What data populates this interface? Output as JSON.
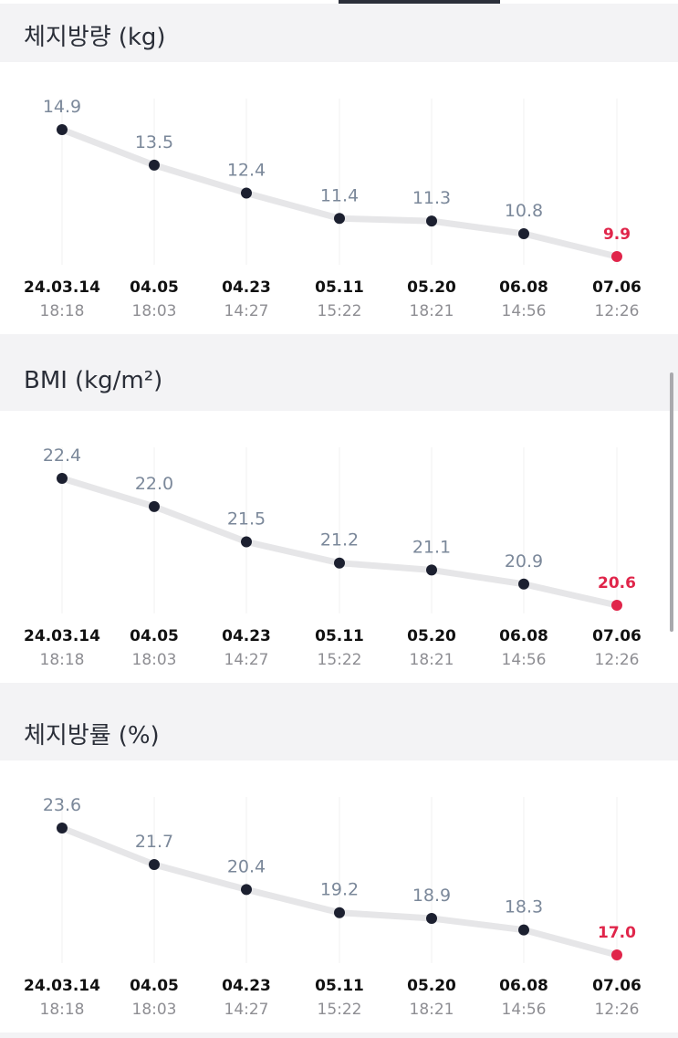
{
  "colors": {
    "background": "#f3f3f5",
    "card": "#ffffff",
    "title": "#2a2e38",
    "point": "#1c2030",
    "latest_point": "#e0254a",
    "value_label": "#7b889a",
    "line": "#e6e6e8",
    "gridline": "#f0f0f0",
    "date_label": "#111111",
    "time_label": "#8e8e93"
  },
  "x_dates": [
    "24.03.14",
    "04.05",
    "04.23",
    "05.11",
    "05.20",
    "06.08",
    "07.06"
  ],
  "x_times": [
    "18:18",
    "18:03",
    "14:27",
    "15:22",
    "18:21",
    "14:56",
    "12:26"
  ],
  "sections": [
    {
      "title": "체지방량",
      "unit": "(kg)"
    },
    {
      "title": "BMI",
      "unit": "(kg/m²)"
    },
    {
      "title": "체지방률",
      "unit": "(%)"
    }
  ],
  "chart_data": [
    {
      "type": "line",
      "x": [
        "24.03.14 18:18",
        "04.05 18:03",
        "04.23 14:27",
        "05.11 15:22",
        "05.20 18:21",
        "06.08 14:56",
        "07.06 12:26"
      ],
      "series": [
        {
          "values": [
            14.9,
            13.5,
            12.4,
            11.4,
            11.3,
            10.8,
            9.9
          ]
        }
      ],
      "labels": [
        "14.9",
        "13.5",
        "12.4",
        "11.4",
        "11.3",
        "10.8",
        "9.9"
      ],
      "ylim": [
        9.9,
        14.9
      ],
      "grid": true
    },
    {
      "type": "line",
      "x": [
        "24.03.14 18:18",
        "04.05 18:03",
        "04.23 14:27",
        "05.11 15:22",
        "05.20 18:21",
        "06.08 14:56",
        "07.06 12:26"
      ],
      "series": [
        {
          "values": [
            22.4,
            22.0,
            21.5,
            21.2,
            21.1,
            20.9,
            20.6
          ]
        }
      ],
      "labels": [
        "22.4",
        "22.0",
        "21.5",
        "21.2",
        "21.1",
        "20.9",
        "20.6"
      ],
      "ylim": [
        20.6,
        22.4
      ],
      "grid": true
    },
    {
      "type": "line",
      "x": [
        "24.03.14 18:18",
        "04.05 18:03",
        "04.23 14:27",
        "05.11 15:22",
        "05.20 18:21",
        "06.08 14:56",
        "07.06 12:26"
      ],
      "series": [
        {
          "values": [
            23.6,
            21.7,
            20.4,
            19.2,
            18.9,
            18.3,
            17.0
          ]
        }
      ],
      "labels": [
        "23.6",
        "21.7",
        "20.4",
        "19.2",
        "18.9",
        "18.3",
        "17.0"
      ],
      "ylim": [
        17.0,
        23.6
      ],
      "grid": true
    }
  ]
}
